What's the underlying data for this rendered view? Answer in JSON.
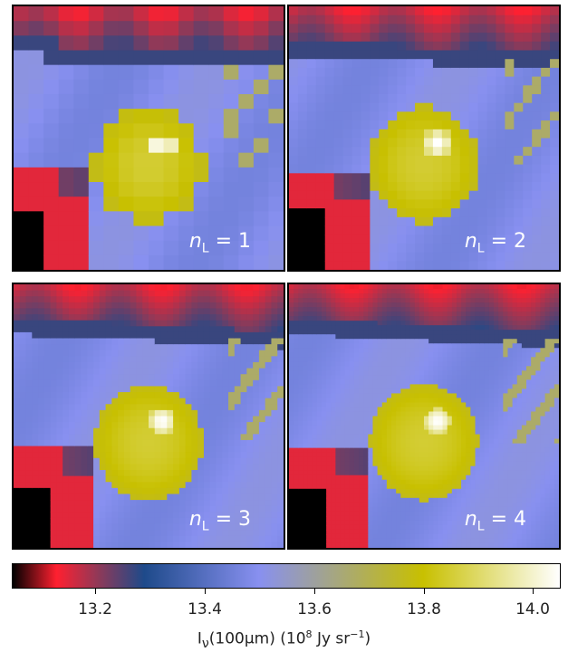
{
  "panels": [
    {
      "id": "nL1",
      "prefix": "n",
      "subscript": "L",
      "equals": " = ",
      "value": "1"
    },
    {
      "id": "nL2",
      "prefix": "n",
      "subscript": "L",
      "equals": " = ",
      "value": "2"
    },
    {
      "id": "nL3",
      "prefix": "n",
      "subscript": "L",
      "equals": " = ",
      "value": "3"
    },
    {
      "id": "nL4",
      "prefix": "n",
      "subscript": "L",
      "equals": " = ",
      "value": "4"
    }
  ],
  "colorbar": {
    "range": [
      13.1,
      14.1
    ],
    "ticks": [
      "13.2",
      "13.4",
      "13.6",
      "13.8",
      "14.0"
    ],
    "label_main": "I",
    "label_sub": "ν",
    "label_mid": "(100μm) (10",
    "label_sup": "8",
    "label_unit": " Jy sr",
    "label_sup2": "−1",
    "label_end": ")",
    "colors": [
      "#000000",
      "#ff2030",
      "#8a3a5a",
      "#1e4a8a",
      "#8890f0",
      "#c8c000",
      "#ffffff"
    ]
  }
}
